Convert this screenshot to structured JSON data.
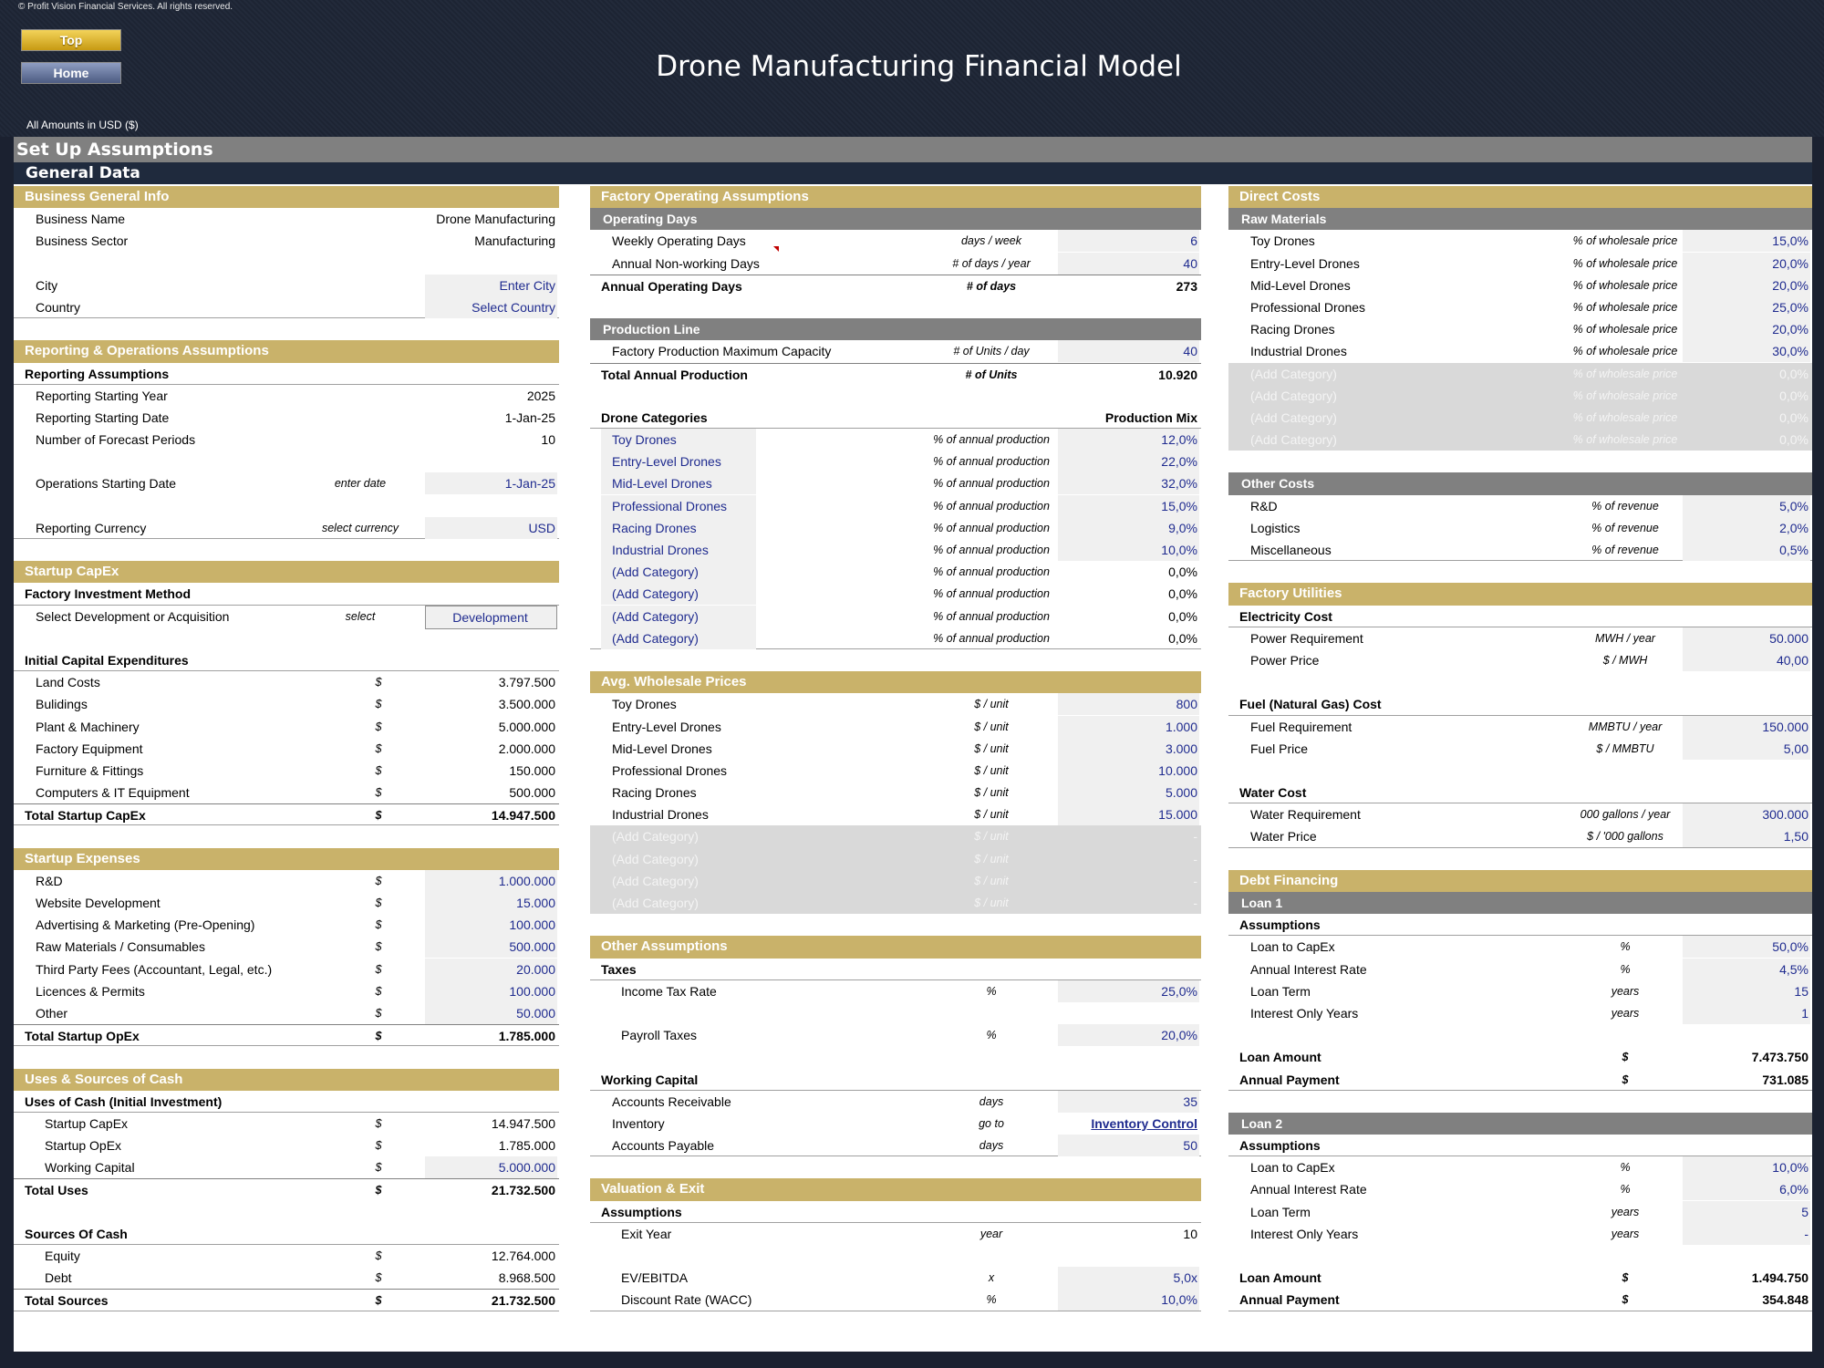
{
  "copyright": "© Profit Vision Financial Services. All rights reserved.",
  "buttons": {
    "top": "Top",
    "home": "Home"
  },
  "title": "Drone Manufacturing Financial Model",
  "amounts_note": "All Amounts in  USD ($)",
  "setup_title": "Set Up Assumptions",
  "general_title": "General Data",
  "business": {
    "title": "Business General Info",
    "name_label": "Business Name",
    "name_value": "Drone Manufacturing",
    "sector_label": "Business Sector",
    "sector_value": "Manufacturing",
    "city_label": "City",
    "city_value": "Enter City",
    "country_label": "Country",
    "country_value": "Select Country"
  },
  "reporting": {
    "title": "Reporting & Operations Assumptions",
    "sub": "Reporting Assumptions",
    "rows": [
      {
        "label": "Reporting Starting Year",
        "value": "2025"
      },
      {
        "label": "Reporting Starting Date",
        "value": "1-Jan-25"
      },
      {
        "label": "Number of Forecast Periods",
        "value": "10"
      }
    ],
    "ops_label": "Operations Starting Date",
    "ops_unit": "enter date",
    "ops_value": "1-Jan-25",
    "currency_label": "Reporting Currency",
    "currency_unit": "select currency",
    "currency_value": "USD"
  },
  "capex": {
    "title": "Startup CapEx",
    "method_title": "Factory Investment Method",
    "select_label": "Select Development or Acquisition",
    "select_unit": "select",
    "select_value": "Development",
    "initial_title": "Initial Capital Expenditures",
    "rows": [
      {
        "label": "Land Costs",
        "unit": "$",
        "value": "3.797.500"
      },
      {
        "label": "Bulidings",
        "unit": "$",
        "value": "3.500.000"
      },
      {
        "label": "Plant & Machinery",
        "unit": "$",
        "value": "5.000.000"
      },
      {
        "label": "Factory Equipment",
        "unit": "$",
        "value": "2.000.000"
      },
      {
        "label": "Furniture & Fittings",
        "unit": "$",
        "value": "150.000"
      },
      {
        "label": "Computers & IT Equipment",
        "unit": "$",
        "value": "500.000"
      }
    ],
    "total_label": "Total Startup CapEx",
    "total_unit": "$",
    "total_value": "14.947.500"
  },
  "expenses": {
    "title": "Startup Expenses",
    "rows": [
      {
        "label": "R&D",
        "unit": "$",
        "value": "1.000.000"
      },
      {
        "label": "Website Development",
        "unit": "$",
        "value": "15.000"
      },
      {
        "label": "Advertising & Marketing (Pre-Opening)",
        "unit": "$",
        "value": "100.000"
      },
      {
        "label": "Raw Materials / Consumables",
        "unit": "$",
        "value": "500.000"
      },
      {
        "label": "Third Party Fees (Accountant, Legal, etc.)",
        "unit": "$",
        "value": "20.000"
      },
      {
        "label": "Licences & Permits",
        "unit": "$",
        "value": "100.000"
      },
      {
        "label": "Other",
        "unit": "$",
        "value": "50.000"
      }
    ],
    "total_label": "Total Startup OpEx",
    "total_unit": "$",
    "total_value": "1.785.000"
  },
  "uses": {
    "title": "Uses & Sources of Cash",
    "uses_title": "Uses of Cash (Initial Investment)",
    "uses_rows": [
      {
        "label": "Startup CapEx",
        "unit": "$",
        "value": "14.947.500"
      },
      {
        "label": "Startup OpEx",
        "unit": "$",
        "value": "1.785.000"
      },
      {
        "label": "Working Capital",
        "unit": "$",
        "value": "5.000.000"
      }
    ],
    "total_uses_label": "Total Uses",
    "total_uses_unit": "$",
    "total_uses_value": "21.732.500",
    "sources_title": "Sources Of Cash",
    "sources_rows": [
      {
        "label": "Equity",
        "unit": "$",
        "value": "12.764.000"
      },
      {
        "label": "Debt",
        "unit": "$",
        "value": "8.968.500"
      }
    ],
    "total_sources_label": "Total Sources",
    "total_sources_unit": "$",
    "total_sources_value": "21.732.500"
  },
  "factory": {
    "title": "Factory Operating Assumptions",
    "opdays_title": "Operating Days",
    "weekly_label": "Weekly Operating Days",
    "weekly_unit": "days / week",
    "weekly_value": "6",
    "annual_nw_label": "Annual Non-working Days",
    "annual_nw_unit": "# of days / year",
    "annual_nw_value": "40",
    "annual_op_label": "Annual Operating Days",
    "annual_op_unit": "# of days",
    "annual_op_value": "273",
    "prod_title": "Production Line",
    "cap_label": "Factory Production Maximum Capacity",
    "cap_unit": "# of Units / day",
    "cap_value": "40",
    "total_prod_label": "Total Annual Production",
    "total_prod_unit": "# of Units",
    "total_prod_value": "10.920",
    "cat_title": "Drone Categories",
    "mix_title": "Production Mix",
    "cat_unit": "% of annual production",
    "categories": [
      {
        "label": "Toy Drones",
        "value": "12,0%"
      },
      {
        "label": "Entry-Level Drones",
        "value": "22,0%"
      },
      {
        "label": "Mid-Level Drones",
        "value": "32,0%"
      },
      {
        "label": "Professional Drones",
        "value": "15,0%"
      },
      {
        "label": "Racing Drones",
        "value": "9,0%"
      },
      {
        "label": "Industrial Drones",
        "value": "10,0%"
      },
      {
        "label": "(Add Category)",
        "value": "0,0%"
      },
      {
        "label": "(Add Category)",
        "value": "0,0%"
      },
      {
        "label": "(Add Category)",
        "value": "0,0%"
      },
      {
        "label": "(Add Category)",
        "value": "0,0%"
      }
    ]
  },
  "wholesale": {
    "title": "Avg. Wholesale Prices",
    "unit": "$ / unit",
    "rows": [
      {
        "label": "Toy Drones",
        "value": "800"
      },
      {
        "label": "Entry-Level Drones",
        "value": "1.000"
      },
      {
        "label": "Mid-Level Drones",
        "value": "3.000"
      },
      {
        "label": "Professional Drones",
        "value": "10.000"
      },
      {
        "label": "Racing Drones",
        "value": "5.000"
      },
      {
        "label": "Industrial Drones",
        "value": "15.000"
      },
      {
        "label": "(Add Category)",
        "value": "-"
      },
      {
        "label": "(Add Category)",
        "value": "-"
      },
      {
        "label": "(Add Category)",
        "value": "-"
      },
      {
        "label": "(Add Category)",
        "value": "-"
      }
    ]
  },
  "other": {
    "title": "Other Assumptions",
    "taxes_title": "Taxes",
    "income_label": "Income Tax Rate",
    "income_unit": "%",
    "income_value": "25,0%",
    "payroll_label": "Payroll Taxes",
    "payroll_unit": "%",
    "payroll_value": "20,0%",
    "wc_title": "Working Capital",
    "ar_label": "Accounts Receivable",
    "ar_unit": "days",
    "ar_value": "35",
    "inv_label": "Inventory",
    "inv_unit": "go to",
    "inv_value": "Inventory Control",
    "ap_label": "Accounts Payable",
    "ap_unit": "days",
    "ap_value": "50"
  },
  "valuation": {
    "title": "Valuation & Exit",
    "assump_title": "Assumptions",
    "exit_label": "Exit Year",
    "exit_unit": "year",
    "exit_value": "10",
    "ev_label": "EV/EBITDA",
    "ev_unit": "x",
    "ev_value": "5,0x",
    "wacc_label": "Discount Rate (WACC)",
    "wacc_unit": "%",
    "wacc_value": "10,0%"
  },
  "direct": {
    "title": "Direct Costs",
    "raw_title": "Raw Materials",
    "raw_unit": "% of wholesale price",
    "raw_rows": [
      {
        "label": "Toy Drones",
        "value": "15,0%"
      },
      {
        "label": "Entry-Level Drones",
        "value": "20,0%"
      },
      {
        "label": "Mid-Level Drones",
        "value": "20,0%"
      },
      {
        "label": "Professional Drones",
        "value": "25,0%"
      },
      {
        "label": "Racing Drones",
        "value": "20,0%"
      },
      {
        "label": "Industrial Drones",
        "value": "30,0%"
      },
      {
        "label": "(Add Category)",
        "value": "0,0%"
      },
      {
        "label": "(Add Category)",
        "value": "0,0%"
      },
      {
        "label": "(Add Category)",
        "value": "0,0%"
      },
      {
        "label": "(Add Category)",
        "value": "0,0%"
      }
    ],
    "other_title": "Other Costs",
    "other_unit": "% of revenue",
    "other_rows": [
      {
        "label": "R&D",
        "value": "5,0%"
      },
      {
        "label": "Logistics",
        "value": "2,0%"
      },
      {
        "label": "Miscellaneous",
        "value": "0,5%"
      }
    ]
  },
  "utilities": {
    "title": "Factory Utilities",
    "elec_title": "Electricity Cost",
    "power_req_label": "Power Requirement",
    "power_req_unit": "MWH / year",
    "power_req_value": "50.000",
    "power_price_label": "Power Price",
    "power_price_unit": "$ / MWH",
    "power_price_value": "40,00",
    "fuel_title": "Fuel (Natural Gas) Cost",
    "fuel_req_label": "Fuel Requirement",
    "fuel_req_unit": "MMBTU / year",
    "fuel_req_value": "150.000",
    "fuel_price_label": "Fuel Price",
    "fuel_price_unit": "$ / MMBTU",
    "fuel_price_value": "5,00",
    "water_title": "Water Cost",
    "water_req_label": "Water Requirement",
    "water_req_unit": "000 gallons / year",
    "water_req_value": "300.000",
    "water_price_label": "Water Price",
    "water_price_unit": "$ / '000 gallons",
    "water_price_value": "1,50"
  },
  "debt": {
    "title": "Debt Financing",
    "loan1": {
      "title": "Loan 1",
      "assump": "Assumptions",
      "rows": [
        {
          "label": "Loan to CapEx",
          "unit": "%",
          "value": "50,0%"
        },
        {
          "label": "Annual Interest Rate",
          "unit": "%",
          "value": "4,5%"
        },
        {
          "label": "Loan Term",
          "unit": "years",
          "value": "15"
        },
        {
          "label": "Interest Only Years",
          "unit": "years",
          "value": "1"
        }
      ],
      "amount_label": "Loan Amount",
      "amount_unit": "$",
      "amount_value": "7.473.750",
      "payment_label": "Annual Payment",
      "payment_unit": "$",
      "payment_value": "731.085"
    },
    "loan2": {
      "title": "Loan 2",
      "assump": "Assumptions",
      "rows": [
        {
          "label": "Loan to CapEx",
          "unit": "%",
          "value": "10,0%"
        },
        {
          "label": "Annual Interest Rate",
          "unit": "%",
          "value": "6,0%"
        },
        {
          "label": "Loan Term",
          "unit": "years",
          "value": "5"
        },
        {
          "label": "Interest Only Years",
          "unit": "years",
          "value": "-"
        }
      ],
      "amount_label": "Loan Amount",
      "amount_unit": "$",
      "amount_value": "1.494.750",
      "payment_label": "Annual Payment",
      "payment_unit": "$",
      "payment_value": "354.848"
    }
  }
}
